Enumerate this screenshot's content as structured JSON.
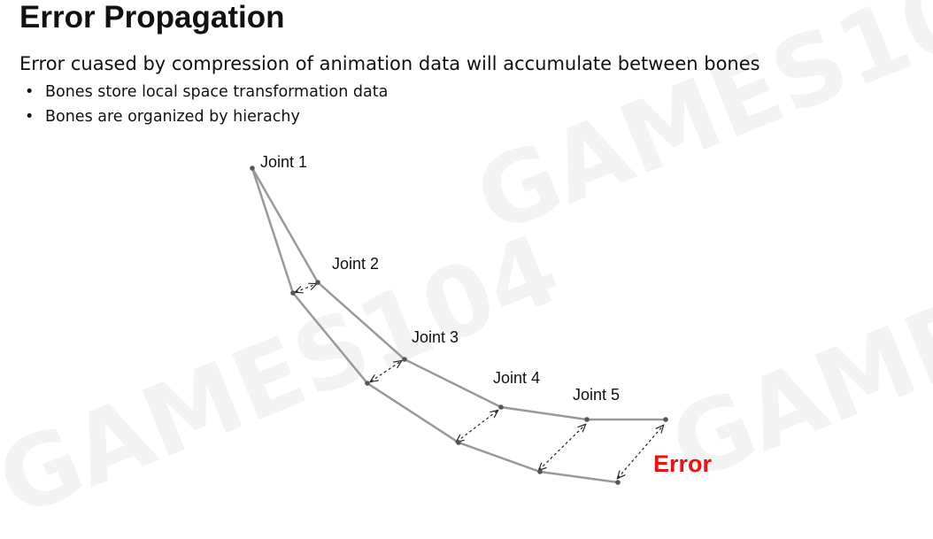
{
  "slide": {
    "title": "Error Propagation",
    "subtitle": "Error cuased by compression of animation data will accumulate between bones",
    "bullets": [
      "Bones store local space transformation data",
      "Bones are organized by hierachy"
    ]
  },
  "diagram": {
    "joint_labels": [
      "Joint 1",
      "Joint 2",
      "Joint 3",
      "Joint 4",
      "Joint 5"
    ],
    "error_label": "Error",
    "colors": {
      "bone_line": "#999999",
      "joint_dot": "#555555",
      "error_arrow": "#222222",
      "error_text": "#ee1111"
    }
  }
}
